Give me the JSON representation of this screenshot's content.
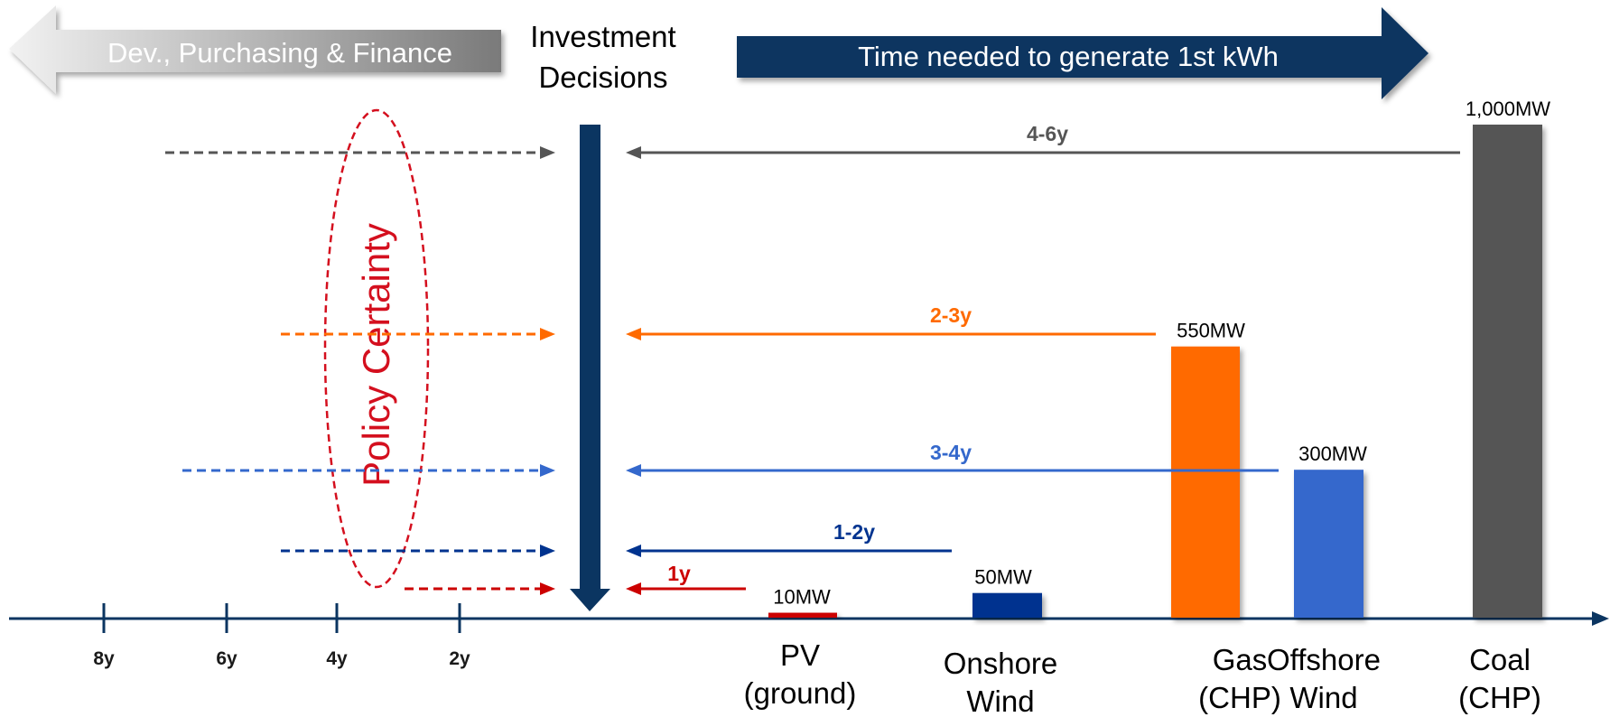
{
  "header": {
    "left_arrow_label": "Dev., Purchasing & Finance",
    "center_label_line1": "Investment",
    "center_label_line2": "Decisions",
    "right_arrow_label": "Time needed to generate 1st kWh"
  },
  "colors": {
    "navy": "#0b3561",
    "coal": "#555555",
    "gas": "#ff6a00",
    "offshore": "#3468cc",
    "onshore": "#00338f",
    "pv": "#cc0000",
    "policy": "#d40f1e"
  },
  "policy_label": "Policy Certainty",
  "timeline_ticks": [
    "8y",
    "6y",
    "4y",
    "2y"
  ],
  "technologies": [
    {
      "key": "coal",
      "capacity_mw": 1000,
      "capacity_label": "1,000MW",
      "duration_label": "4-6y",
      "name_line1": "Coal",
      "name_line2": "(CHP)",
      "color": "#555555"
    },
    {
      "key": "gas",
      "capacity_mw": 550,
      "capacity_label": "550MW",
      "duration_label": "2-3y",
      "name_line1": "Gas",
      "name_line2": "(CHP)",
      "color": "#ff6a00"
    },
    {
      "key": "offshore",
      "capacity_mw": 300,
      "capacity_label": "300MW",
      "duration_label": "3-4y",
      "name_line1": "Offshore",
      "name_line2": "Wind",
      "color": "#3468cc"
    },
    {
      "key": "onshore",
      "capacity_mw": 50,
      "capacity_label": "50MW",
      "duration_label": "1-2y",
      "name_line1": "Onshore",
      "name_line2": "Wind",
      "color": "#00338f"
    },
    {
      "key": "pv",
      "capacity_mw": 10,
      "capacity_label": "10MW",
      "duration_label": "1y",
      "name_line1": "PV",
      "name_line2": "(ground)",
      "color": "#cc0000"
    }
  ]
}
